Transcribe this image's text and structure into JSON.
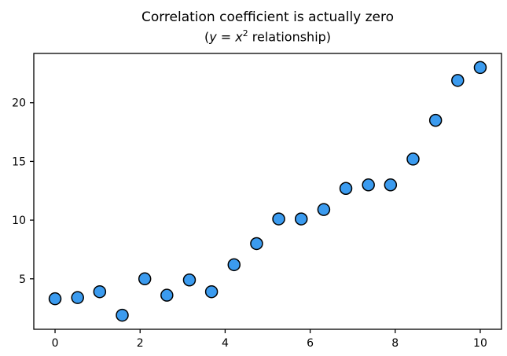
{
  "chart_data": {
    "type": "scatter",
    "title": "Correlation coefficient is actually zero",
    "subtitle": "(y = x² relationship)",
    "subtitle_parts": {
      "open": "(",
      "y_var": "y",
      "equals": " = ",
      "x_var": "x",
      "exponent": "2",
      "rest": " relationship)"
    },
    "x": [
      0,
      0.53,
      1.05,
      1.58,
      2.11,
      2.63,
      3.16,
      3.68,
      4.21,
      4.74,
      5.26,
      5.79,
      6.32,
      6.84,
      7.37,
      7.89,
      8.42,
      8.95,
      9.47,
      10
    ],
    "y": [
      3.3,
      3.4,
      3.9,
      1.9,
      5.0,
      3.6,
      4.9,
      3.9,
      6.2,
      8.0,
      10.1,
      10.1,
      10.9,
      12.7,
      13.0,
      13.0,
      15.2,
      18.5,
      21.9,
      23.0
    ],
    "xticks": [
      0,
      2,
      4,
      6,
      8,
      10
    ],
    "yticks": [
      5,
      10,
      15,
      20
    ],
    "xlim": [
      -0.5,
      10.5
    ],
    "ylim": [
      0.7,
      24.2
    ],
    "xlabel": "",
    "ylabel": "",
    "grid": false,
    "legend": null,
    "marker": {
      "fill": "#3b9bef",
      "edge": "#000000",
      "radius": 7.5,
      "edge_width": 1.5
    },
    "axes_color": "#000000",
    "background": "#ffffff"
  }
}
